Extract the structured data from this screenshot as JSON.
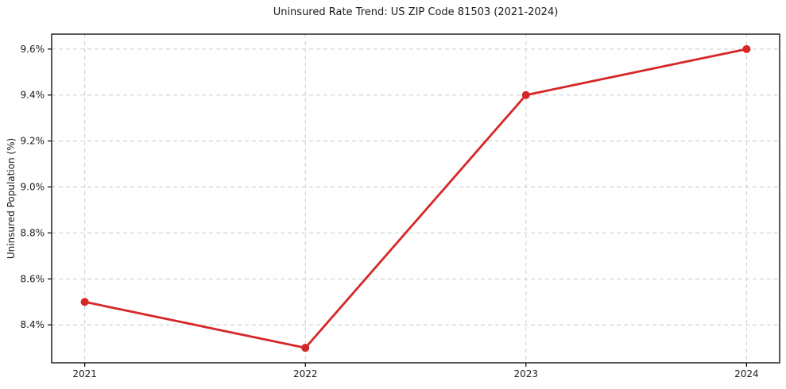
{
  "chart_data": {
    "type": "line",
    "title": "Uninsured Rate Trend: US ZIP Code 81503 (2021-2024)",
    "xlabel": "",
    "ylabel": "Uninsured Population (%)",
    "x": [
      2021,
      2022,
      2023,
      2024
    ],
    "x_tick_labels": [
      "2021",
      "2022",
      "2023",
      "2024"
    ],
    "values": [
      8.5,
      8.3,
      9.4,
      9.6
    ],
    "y_ticks": [
      8.4,
      8.6,
      8.8,
      9.0,
      9.2,
      9.4,
      9.6
    ],
    "y_tick_labels": [
      "8.4%",
      "8.6%",
      "8.8%",
      "9.0%",
      "9.2%",
      "9.4%",
      "9.6%"
    ],
    "xlim": [
      2020.85,
      2024.15
    ],
    "ylim": [
      8.235,
      9.665
    ],
    "grid": "dashed-both-axes",
    "legend": "none",
    "colors": {
      "line": "#d62728",
      "marker": "#d62728",
      "grid": "#cbcbcb",
      "spine": "#000000",
      "text": "#1a1a1a"
    },
    "marker": "circle"
  }
}
